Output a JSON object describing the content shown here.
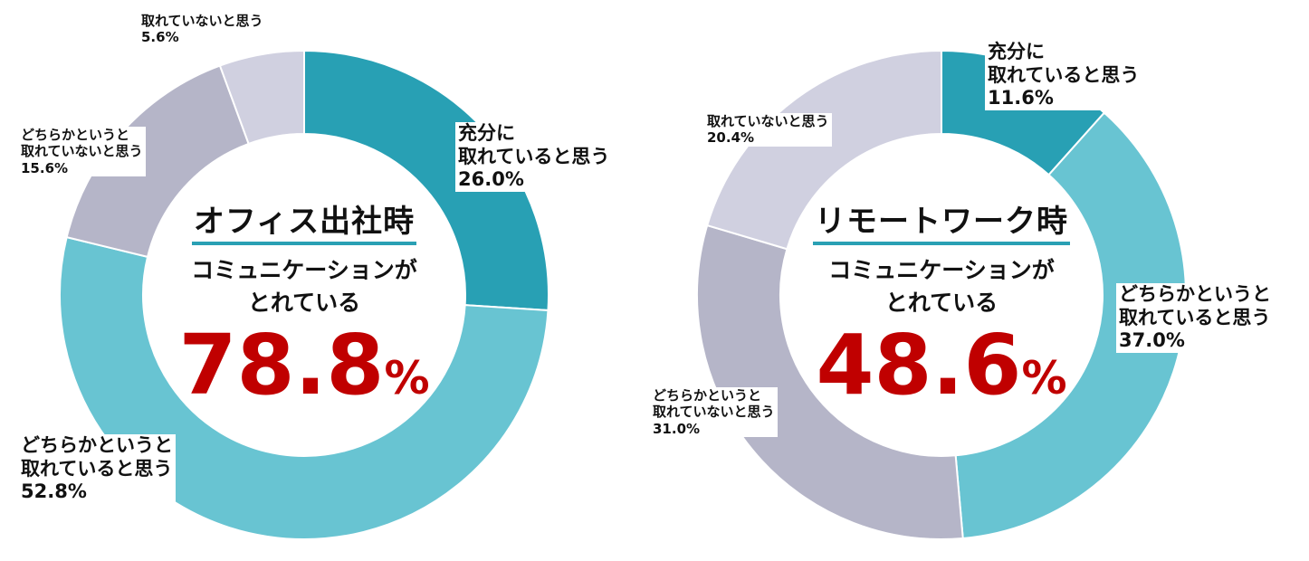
{
  "colors": {
    "accent_value": "#c00000",
    "title_underline": "#2aa0b4",
    "label_background": "#ffffff"
  },
  "chart_data": [
    {
      "type": "pie",
      "variant": "donut",
      "title": "オフィス出社時",
      "center_text": [
        "コミュニケーションが",
        "とれている"
      ],
      "center_value": "78.8",
      "center_unit": "%",
      "categories": [
        "充分に取れていると思う",
        "どちらかというと取れていると思う",
        "どちらかというと取れていないと思う",
        "取れていないと思う"
      ],
      "values": [
        26.0,
        52.8,
        15.6,
        5.6
      ],
      "colors": [
        "#28a0b4",
        "#68c4d2",
        "#b5b5c8",
        "#d0d0e0"
      ],
      "labels": [
        {
          "lines": [
            "充分に",
            "取れていると思う"
          ],
          "value": "26.0%"
        },
        {
          "lines": [
            "どちらかというと",
            "取れていると思う"
          ],
          "value": "52.8%"
        },
        {
          "lines": [
            "どちらかというと",
            "取れていないと思う"
          ],
          "value": "15.6%"
        },
        {
          "lines": [
            "取れていないと思う"
          ],
          "value": "5.6%"
        }
      ]
    },
    {
      "type": "pie",
      "variant": "donut",
      "title": "リモートワーク時",
      "center_text": [
        "コミュニケーションが",
        "とれている"
      ],
      "center_value": "48.6",
      "center_unit": "%",
      "categories": [
        "充分に取れていると思う",
        "どちらかというと取れていると思う",
        "どちらかというと取れていないと思う",
        "取れていないと思う"
      ],
      "values": [
        11.6,
        37.0,
        31.0,
        20.4
      ],
      "colors": [
        "#28a0b4",
        "#68c4d2",
        "#b5b5c8",
        "#d0d0e0"
      ],
      "labels": [
        {
          "lines": [
            "充分に",
            "取れていると思う"
          ],
          "value": "11.6%"
        },
        {
          "lines": [
            "どちらかというと",
            "取れていると思う"
          ],
          "value": "37.0%"
        },
        {
          "lines": [
            "どちらかというと",
            "取れていないと思う"
          ],
          "value": "31.0%"
        },
        {
          "lines": [
            "取れていないと思う"
          ],
          "value": "20.4%"
        }
      ]
    }
  ]
}
